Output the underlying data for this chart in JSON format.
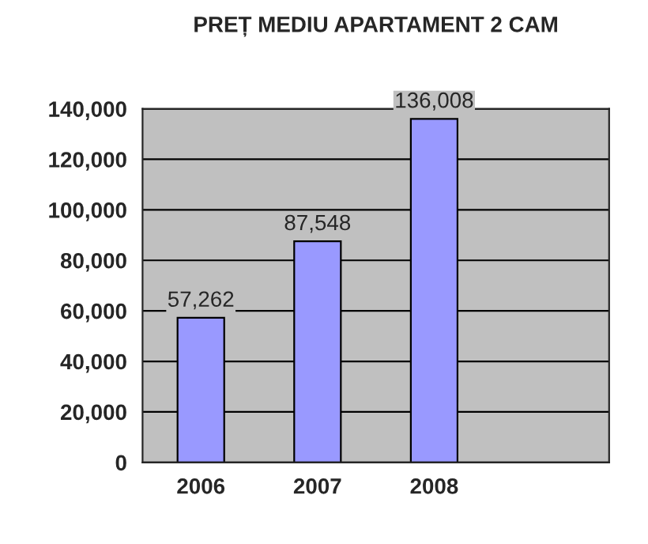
{
  "chart_data": {
    "type": "bar",
    "title": "PREȚ MEDIU APARTAMENT 2 CAM",
    "categories": [
      "2006",
      "2007",
      "2008",
      null
    ],
    "values": [
      57262,
      87548,
      136008,
      null
    ],
    "value_labels": [
      "57,262",
      "87,548",
      "136,008",
      null
    ],
    "color": "#9999ff",
    "ylim": [
      0,
      140000
    ],
    "yticks": [
      {
        "value": 0,
        "label": "0"
      },
      {
        "value": 20000,
        "label": "20,000"
      },
      {
        "value": 40000,
        "label": "40,000"
      },
      {
        "value": 60000,
        "label": "60,000"
      },
      {
        "value": 80000,
        "label": "80,000"
      },
      {
        "value": 100000,
        "label": "100,000"
      },
      {
        "value": 120000,
        "label": "120,000"
      },
      {
        "value": 140000,
        "label": "140,000"
      }
    ],
    "grid": "y"
  }
}
